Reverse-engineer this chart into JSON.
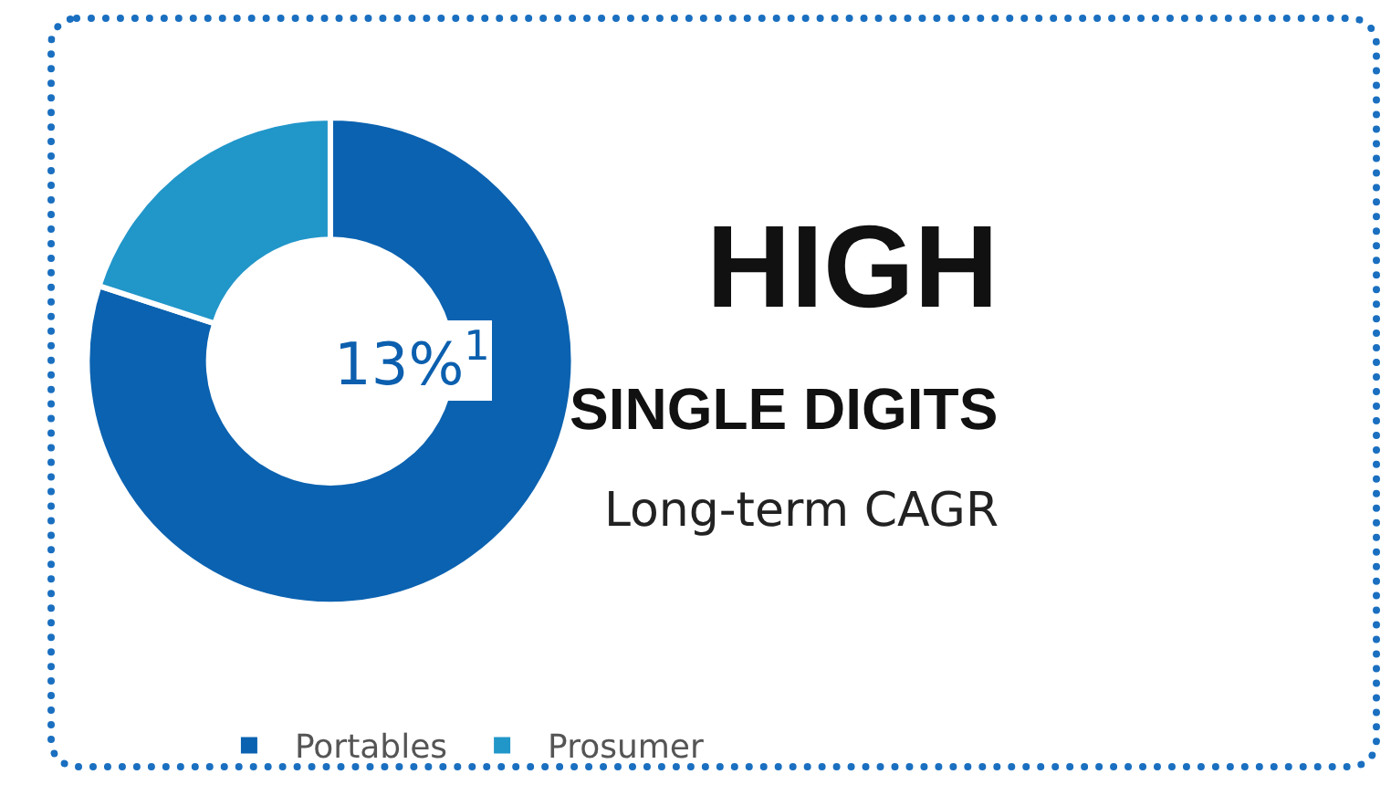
{
  "chart_data": {
    "type": "donut",
    "categories": [
      "Portables",
      "Prosumer"
    ],
    "values": [
      80,
      20
    ],
    "colors": [
      "#0b62b0",
      "#2196c9"
    ],
    "legend": "bottom",
    "annotations": [
      "13%$^{1}$",
      "HIGH",
      "SINGLE DIGITS",
      "Long-term CAGR"
    ]
  }
}
